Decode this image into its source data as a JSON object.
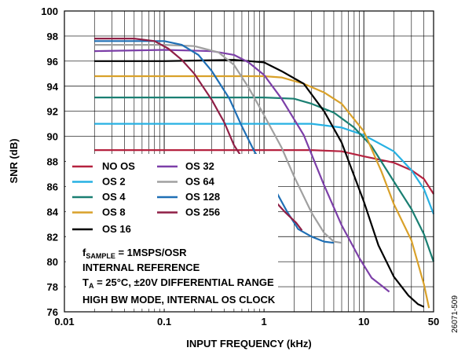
{
  "chart_data": {
    "type": "line",
    "xlabel": "INPUT FREQUENCY (kHz)",
    "ylabel": "SNR (dB)",
    "xscale": "log",
    "xlim": [
      0.01,
      50
    ],
    "ylim": [
      76,
      100
    ],
    "x_ticks": [
      {
        "value": 0.01,
        "label": "0.01"
      },
      {
        "value": 0.1,
        "label": "0.1"
      },
      {
        "value": 1,
        "label": "1"
      },
      {
        "value": 10,
        "label": "10"
      },
      {
        "value": 50,
        "label": "50"
      }
    ],
    "y_ticks": [
      76,
      78,
      80,
      82,
      84,
      86,
      88,
      90,
      92,
      94,
      96,
      98,
      100
    ],
    "grid": true,
    "legend_position": "bottom-left",
    "series": [
      {
        "name": "NO OS",
        "color": "#b5223f",
        "points": [
          [
            0.02,
            88.9
          ],
          [
            0.1,
            88.9
          ],
          [
            1,
            88.9
          ],
          [
            3,
            88.9
          ],
          [
            6,
            88.8
          ],
          [
            10,
            88.4
          ],
          [
            20,
            87.9
          ],
          [
            30,
            87.3
          ],
          [
            40,
            86.6
          ],
          [
            50,
            85.4
          ]
        ]
      },
      {
        "name": "OS 2",
        "color": "#27b1e3",
        "points": [
          [
            0.02,
            91.0
          ],
          [
            0.1,
            91.0
          ],
          [
            1,
            91.0
          ],
          [
            3,
            91.0
          ],
          [
            6,
            90.7
          ],
          [
            10,
            90.1
          ],
          [
            20,
            88.8
          ],
          [
            30,
            87.3
          ],
          [
            40,
            85.8
          ],
          [
            50,
            83.8
          ]
        ]
      },
      {
        "name": "OS 4",
        "color": "#1a7f72",
        "points": [
          [
            0.02,
            93.1
          ],
          [
            0.1,
            93.1
          ],
          [
            1,
            93.1
          ],
          [
            2,
            93.0
          ],
          [
            3,
            92.6
          ],
          [
            5,
            91.9
          ],
          [
            8,
            90.7
          ],
          [
            12,
            89.2
          ],
          [
            20,
            86.4
          ],
          [
            30,
            84.2
          ],
          [
            40,
            82.2
          ],
          [
            50,
            80.0
          ]
        ]
      },
      {
        "name": "OS 8",
        "color": "#d9a12a",
        "points": [
          [
            0.02,
            94.8
          ],
          [
            0.1,
            94.8
          ],
          [
            1,
            94.8
          ],
          [
            1.5,
            94.7
          ],
          [
            2.5,
            94.2
          ],
          [
            4,
            93.5
          ],
          [
            6,
            92.6
          ],
          [
            10,
            90.4
          ],
          [
            15,
            87.2
          ],
          [
            20,
            84.6
          ],
          [
            30,
            81.7
          ],
          [
            40,
            78.2
          ],
          [
            45,
            76.3
          ]
        ]
      },
      {
        "name": "OS 16",
        "color": "#000000",
        "points": [
          [
            0.02,
            96.0
          ],
          [
            0.1,
            96.0
          ],
          [
            0.5,
            96.1
          ],
          [
            1,
            95.9
          ],
          [
            1.5,
            95.2
          ],
          [
            2.5,
            94.2
          ],
          [
            4,
            92.0
          ],
          [
            6,
            89.5
          ],
          [
            10,
            84.8
          ],
          [
            14,
            81.3
          ],
          [
            20,
            78.8
          ],
          [
            28,
            77.3
          ],
          [
            35,
            76.6
          ],
          [
            40,
            76.4
          ]
        ]
      },
      {
        "name": "OS 32",
        "color": "#7c3fa8",
        "points": [
          [
            0.02,
            96.8
          ],
          [
            0.1,
            96.9
          ],
          [
            0.3,
            96.8
          ],
          [
            0.5,
            96.5
          ],
          [
            0.7,
            95.9
          ],
          [
            1,
            94.9
          ],
          [
            1.5,
            93.0
          ],
          [
            2.5,
            90.1
          ],
          [
            4,
            86.1
          ],
          [
            6,
            82.9
          ],
          [
            9,
            80.3
          ],
          [
            12,
            78.7
          ],
          [
            15,
            78.1
          ],
          [
            18,
            77.6
          ]
        ]
      },
      {
        "name": "OS 64",
        "color": "#a0a0a0",
        "points": [
          [
            0.02,
            97.3
          ],
          [
            0.1,
            97.3
          ],
          [
            0.2,
            97.2
          ],
          [
            0.35,
            96.7
          ],
          [
            0.5,
            95.7
          ],
          [
            0.7,
            93.9
          ],
          [
            1,
            91.7
          ],
          [
            1.5,
            89.1
          ],
          [
            2,
            86.8
          ],
          [
            3,
            83.9
          ],
          [
            4,
            82.3
          ],
          [
            5,
            81.6
          ],
          [
            6,
            81.5
          ]
        ]
      },
      {
        "name": "OS 128",
        "color": "#1f6fb5",
        "points": [
          [
            0.02,
            97.6
          ],
          [
            0.1,
            97.6
          ],
          [
            0.15,
            97.3
          ],
          [
            0.22,
            96.5
          ],
          [
            0.3,
            95.2
          ],
          [
            0.45,
            93.0
          ],
          [
            0.6,
            90.8
          ],
          [
            0.8,
            88.8
          ],
          [
            1,
            87.6
          ],
          [
            1.3,
            85.7
          ],
          [
            1.7,
            84.0
          ],
          [
            2.2,
            82.6
          ],
          [
            3,
            82.0
          ],
          [
            4,
            81.6
          ],
          [
            5,
            81.5
          ]
        ]
      },
      {
        "name": "OS 256",
        "color": "#8f1f46",
        "points": [
          [
            0.02,
            97.8
          ],
          [
            0.05,
            97.8
          ],
          [
            0.08,
            97.6
          ],
          [
            0.11,
            97.0
          ],
          [
            0.15,
            96.1
          ],
          [
            0.2,
            95.0
          ],
          [
            0.3,
            92.9
          ],
          [
            0.4,
            91.1
          ],
          [
            0.5,
            89.3
          ],
          [
            0.7,
            87.5
          ],
          [
            0.9,
            86.2
          ],
          [
            1.2,
            85.1
          ],
          [
            1.6,
            84.0
          ],
          [
            2.1,
            83.1
          ],
          [
            2.4,
            82.5
          ]
        ]
      }
    ]
  },
  "conditions": {
    "line1_main": "f",
    "line1_sub": "SAMPLE",
    "line1_rest": " = 1MSPS/OSR",
    "line2": "INTERNAL REFERENCE",
    "line3_main": "T",
    "line3_sub": "A",
    "line3_rest": " = 25°C, ±20V DIFFERENTIAL RANGE",
    "line4": "HIGH BW MODE, INTERNAL OS CLOCK"
  },
  "figure_id": "26071-509"
}
